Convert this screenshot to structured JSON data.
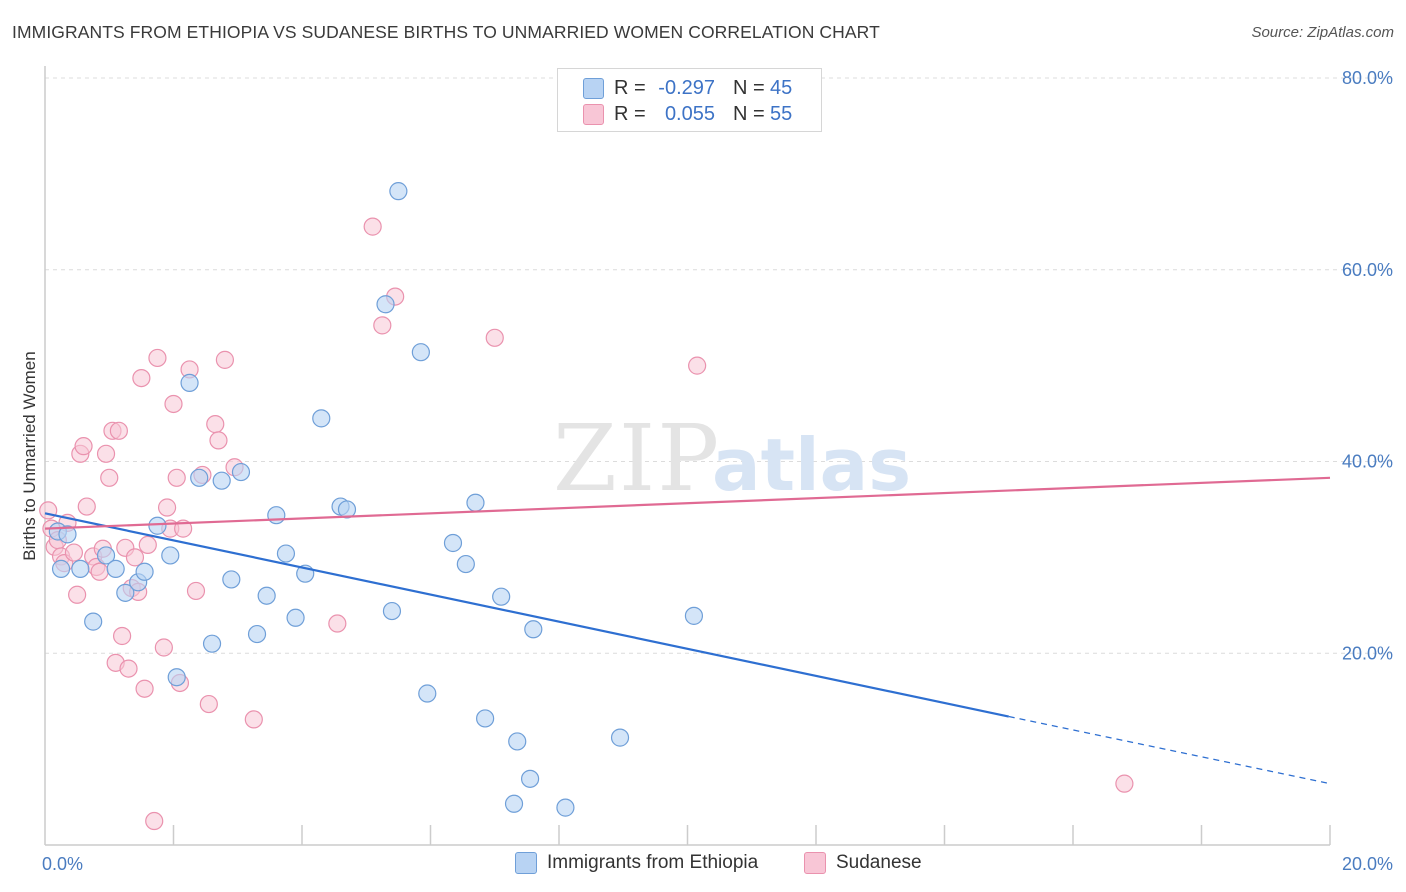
{
  "title": "IMMIGRANTS FROM ETHIOPIA VS SUDANESE BIRTHS TO UNMARRIED WOMEN CORRELATION CHART",
  "source": "Source: ZipAtlas.com",
  "watermark": {
    "zip": "ZIP",
    "atlas": "atlas"
  },
  "legend": {
    "rows": [
      {
        "r_label": "R =",
        "r_value": "-0.297",
        "n_label": "N =",
        "n_value": "45"
      },
      {
        "r_label": "R =",
        "r_value": "0.055",
        "n_label": "N =",
        "n_value": "55"
      }
    ]
  },
  "bottom_legend": [
    "Immigrants from Ethiopia",
    "Sudanese"
  ],
  "colors": {
    "ethiopia_fill": "#b8d3f3",
    "ethiopia_stroke": "#6f9fd8",
    "ethiopia_line": "#2e6fd1",
    "sudanese_fill": "#f8c6d6",
    "sudanese_stroke": "#ea92ae",
    "sudanese_line": "#e06a93",
    "tick_label": "#4a7cc0",
    "grid": "#dcdcdc"
  },
  "chart_data": {
    "type": "scatter",
    "ylabel": "Births to Unmarried Women",
    "xlim": [
      0,
      20
    ],
    "ylim": [
      0,
      80
    ],
    "x_tick_labels": [
      "0.0%",
      "20.0%"
    ],
    "y_ticks": [
      20,
      40,
      60,
      80
    ],
    "y_tick_labels": [
      "20.0%",
      "40.0%",
      "60.0%",
      "80.0%"
    ],
    "grid": true,
    "legend_position": "top-center",
    "series": [
      {
        "name": "Immigrants from Ethiopia",
        "r": -0.297,
        "n": 45,
        "trend": {
          "x0": 0,
          "y0": 34.6,
          "x1": 15.0,
          "y1": 13.4,
          "dash_to_x": 20.0,
          "dash_to_y": 6.4
        },
        "points": [
          [
            0.2,
            32.7
          ],
          [
            0.25,
            28.8
          ],
          [
            0.35,
            32.4
          ],
          [
            0.55,
            28.8
          ],
          [
            0.75,
            23.3
          ],
          [
            0.95,
            30.2
          ],
          [
            1.1,
            28.8
          ],
          [
            1.25,
            26.3
          ],
          [
            1.45,
            27.4
          ],
          [
            1.55,
            28.5
          ],
          [
            1.75,
            33.3
          ],
          [
            1.95,
            30.2
          ],
          [
            2.05,
            17.5
          ],
          [
            2.25,
            48.2
          ],
          [
            2.4,
            38.3
          ],
          [
            2.6,
            21.0
          ],
          [
            2.75,
            38.0
          ],
          [
            2.9,
            27.7
          ],
          [
            3.05,
            38.9
          ],
          [
            3.3,
            22.0
          ],
          [
            3.45,
            26.0
          ],
          [
            3.6,
            34.4
          ],
          [
            3.75,
            30.4
          ],
          [
            3.9,
            23.7
          ],
          [
            4.05,
            28.3
          ],
          [
            4.3,
            44.5
          ],
          [
            4.6,
            35.3
          ],
          [
            4.7,
            35.0
          ],
          [
            5.3,
            56.4
          ],
          [
            5.4,
            24.4
          ],
          [
            5.5,
            68.2
          ],
          [
            5.85,
            51.4
          ],
          [
            5.95,
            15.8
          ],
          [
            6.35,
            31.5
          ],
          [
            6.55,
            29.3
          ],
          [
            6.7,
            35.7
          ],
          [
            6.85,
            13.2
          ],
          [
            7.1,
            25.9
          ],
          [
            7.35,
            10.8
          ],
          [
            7.55,
            6.9
          ],
          [
            7.6,
            22.5
          ],
          [
            7.3,
            4.3
          ],
          [
            8.1,
            3.9
          ],
          [
            8.95,
            11.2
          ],
          [
            10.1,
            23.9
          ]
        ]
      },
      {
        "name": "Sudanese",
        "r": 0.055,
        "n": 55,
        "trend": {
          "x0": 0,
          "y0": 33.0,
          "x1": 20.0,
          "y1": 38.3
        },
        "points": [
          [
            0.05,
            34.9
          ],
          [
            0.1,
            33.0
          ],
          [
            0.15,
            31.1
          ],
          [
            0.2,
            31.8
          ],
          [
            0.25,
            30.1
          ],
          [
            0.3,
            29.4
          ],
          [
            0.35,
            33.6
          ],
          [
            0.45,
            30.5
          ],
          [
            0.5,
            26.1
          ],
          [
            0.55,
            40.8
          ],
          [
            0.6,
            41.6
          ],
          [
            0.65,
            35.3
          ],
          [
            0.75,
            30.1
          ],
          [
            0.8,
            29.0
          ],
          [
            0.85,
            28.5
          ],
          [
            0.9,
            30.9
          ],
          [
            0.95,
            40.8
          ],
          [
            1.0,
            38.3
          ],
          [
            1.05,
            43.2
          ],
          [
            1.1,
            19.0
          ],
          [
            1.15,
            43.2
          ],
          [
            1.2,
            21.8
          ],
          [
            1.25,
            31.0
          ],
          [
            1.3,
            18.4
          ],
          [
            1.35,
            26.8
          ],
          [
            1.4,
            30.0
          ],
          [
            1.45,
            26.4
          ],
          [
            1.5,
            48.7
          ],
          [
            1.55,
            16.3
          ],
          [
            1.6,
            31.3
          ],
          [
            1.7,
            2.5
          ],
          [
            1.75,
            50.8
          ],
          [
            1.85,
            20.6
          ],
          [
            1.95,
            33.0
          ],
          [
            2.0,
            46.0
          ],
          [
            2.05,
            38.3
          ],
          [
            2.1,
            16.9
          ],
          [
            2.15,
            33.0
          ],
          [
            2.25,
            49.6
          ],
          [
            2.35,
            26.5
          ],
          [
            2.45,
            38.6
          ],
          [
            2.55,
            14.7
          ],
          [
            2.65,
            43.9
          ],
          [
            2.7,
            42.2
          ],
          [
            2.8,
            50.6
          ],
          [
            2.95,
            39.4
          ],
          [
            3.25,
            13.1
          ],
          [
            4.55,
            23.1
          ],
          [
            5.1,
            64.5
          ],
          [
            5.25,
            54.2
          ],
          [
            5.45,
            57.2
          ],
          [
            7.0,
            52.9
          ],
          [
            10.15,
            50.0
          ],
          [
            16.8,
            6.4
          ],
          [
            1.9,
            35.2
          ]
        ]
      }
    ]
  }
}
